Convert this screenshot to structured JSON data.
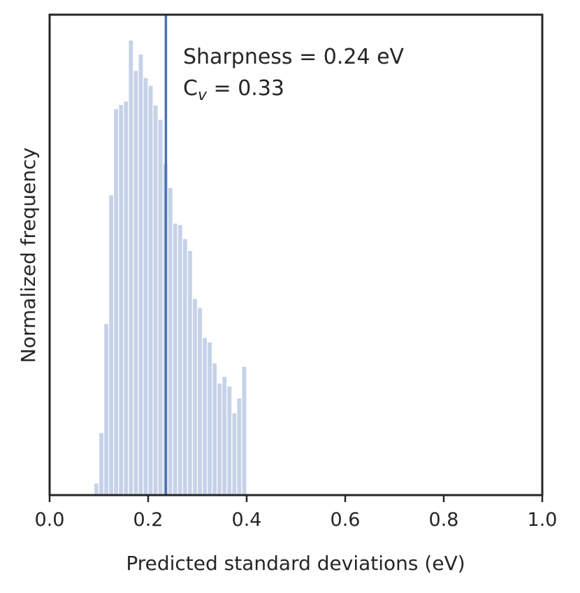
{
  "chart_data": {
    "type": "bar",
    "subtype": "histogram",
    "xlabel": "Predicted standard deviations (eV)",
    "ylabel": "Normalized frequency",
    "xlim": [
      0.0,
      1.0
    ],
    "ylim": [
      0,
      1.0
    ],
    "x_ticks": [
      "0.0",
      "0.2",
      "0.4",
      "0.6",
      "0.8",
      "1.0"
    ],
    "y_ticks": [],
    "grid": false,
    "bin_width": 0.01,
    "bins": [
      {
        "x0": 0.09,
        "x1": 0.1,
        "value": 0.025
      },
      {
        "x0": 0.1,
        "x1": 0.11,
        "value": 0.13
      },
      {
        "x0": 0.11,
        "x1": 0.12,
        "value": 0.357
      },
      {
        "x0": 0.12,
        "x1": 0.13,
        "value": 0.625
      },
      {
        "x0": 0.13,
        "x1": 0.14,
        "value": 0.804
      },
      {
        "x0": 0.14,
        "x1": 0.15,
        "value": 0.813
      },
      {
        "x0": 0.15,
        "x1": 0.16,
        "value": 0.82
      },
      {
        "x0": 0.16,
        "x1": 0.17,
        "value": 0.947
      },
      {
        "x0": 0.17,
        "x1": 0.18,
        "value": 0.884
      },
      {
        "x0": 0.18,
        "x1": 0.19,
        "value": 0.918
      },
      {
        "x0": 0.19,
        "x1": 0.2,
        "value": 0.869
      },
      {
        "x0": 0.2,
        "x1": 0.21,
        "value": 0.853
      },
      {
        "x0": 0.21,
        "x1": 0.22,
        "value": 0.812
      },
      {
        "x0": 0.22,
        "x1": 0.23,
        "value": 0.782
      },
      {
        "x0": 0.23,
        "x1": 0.24,
        "value": 0.691
      },
      {
        "x0": 0.24,
        "x1": 0.25,
        "value": 0.64
      },
      {
        "x0": 0.25,
        "x1": 0.26,
        "value": 0.566
      },
      {
        "x0": 0.26,
        "x1": 0.27,
        "value": 0.563
      },
      {
        "x0": 0.27,
        "x1": 0.28,
        "value": 0.534
      },
      {
        "x0": 0.28,
        "x1": 0.29,
        "value": 0.509
      },
      {
        "x0": 0.29,
        "x1": 0.3,
        "value": 0.409
      },
      {
        "x0": 0.3,
        "x1": 0.31,
        "value": 0.39
      },
      {
        "x0": 0.31,
        "x1": 0.32,
        "value": 0.328
      },
      {
        "x0": 0.32,
        "x1": 0.33,
        "value": 0.319
      },
      {
        "x0": 0.33,
        "x1": 0.34,
        "value": 0.275
      },
      {
        "x0": 0.34,
        "x1": 0.35,
        "value": 0.233
      },
      {
        "x0": 0.35,
        "x1": 0.36,
        "value": 0.247
      },
      {
        "x0": 0.36,
        "x1": 0.37,
        "value": 0.227
      },
      {
        "x0": 0.37,
        "x1": 0.38,
        "value": 0.171
      },
      {
        "x0": 0.38,
        "x1": 0.39,
        "value": 0.202
      },
      {
        "x0": 0.39,
        "x1": 0.4,
        "value": 0.268
      }
    ],
    "vline": {
      "x": 0.236,
      "label": "Sharpness = 0.24 eV"
    },
    "annotations": {
      "sharpness": "Sharpness = 0.24 eV",
      "cv_prefix": "C",
      "cv_subscript": "v",
      "cv_value": " = 0.33"
    },
    "colors": {
      "bar_fill": "#c5d2e8",
      "bar_stroke": "#ffffff",
      "vline": "#4c72b0",
      "axis": "#262626"
    }
  }
}
